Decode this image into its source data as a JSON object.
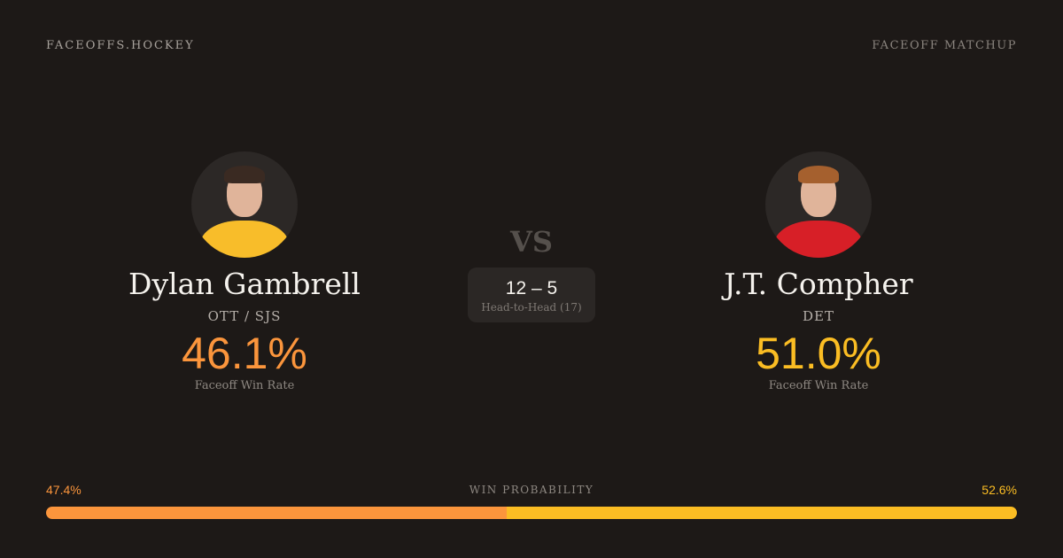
{
  "header": {
    "brand": "FACEOFFS.HOCKEY",
    "tag": "FACEOFF MATCHUP"
  },
  "colors": {
    "left": "#fb953c",
    "right": "#fbbd23"
  },
  "left": {
    "name": "Dylan Gambrell",
    "team": "OTT / SJS",
    "rate": "46.1%",
    "rate_label": "Faceoff Win Rate",
    "jersey": "#f8bd2a",
    "hair": "#3a2a22"
  },
  "right": {
    "name": "J.T. Compher",
    "team": "DET",
    "rate": "51.0%",
    "rate_label": "Faceoff Win Rate",
    "jersey": "#d71f27",
    "hair": "#a5602e"
  },
  "vs": "VS",
  "head_to_head": {
    "score": "12 – 5",
    "label": "Head-to-Head (17)"
  },
  "win_probability": {
    "label": "WIN PROBABILITY",
    "left": "47.4%",
    "right": "52.6%",
    "left_value": 47.4,
    "right_value": 52.6
  }
}
